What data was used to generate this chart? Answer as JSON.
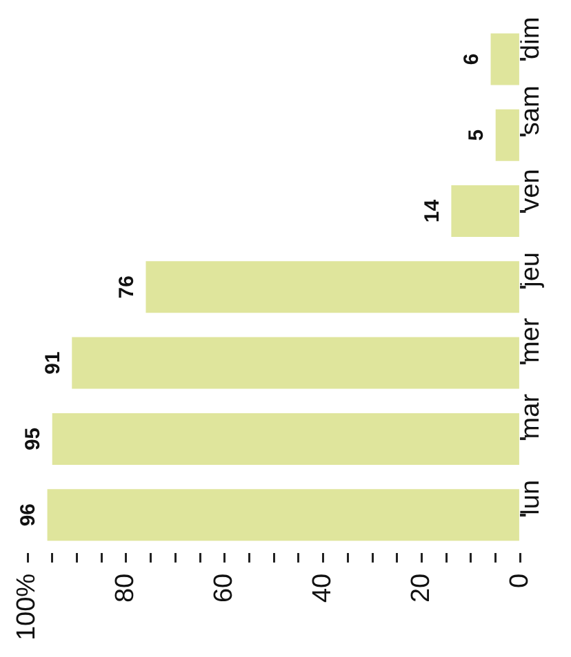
{
  "chart_data": {
    "type": "bar",
    "orientation": "horizontal",
    "categories": [
      "dim",
      "sam",
      "ven",
      "jeu",
      "mer",
      "mar",
      "lun"
    ],
    "values": [
      6,
      5,
      14,
      76,
      91,
      95,
      96
    ],
    "color": "#dfe59c",
    "xlim": [
      100,
      0
    ],
    "xticks": [
      {
        "value": 100,
        "label": "100%"
      },
      {
        "value": 95,
        "label": null
      },
      {
        "value": 90,
        "label": null
      },
      {
        "value": 85,
        "label": null
      },
      80,
      {
        "value": 75,
        "label": null
      },
      {
        "value": 70,
        "label": null
      },
      {
        "value": 65,
        "label": null
      },
      60,
      {
        "value": 55,
        "label": null
      },
      {
        "value": 50,
        "label": null
      },
      {
        "value": 45,
        "label": null
      },
      40,
      {
        "value": 35,
        "label": null
      },
      {
        "value": 30,
        "label": null
      },
      {
        "value": 25,
        "label": null
      },
      20,
      {
        "value": 15,
        "label": null
      },
      {
        "value": 10,
        "label": null
      },
      {
        "value": 5,
        "label": null
      },
      0
    ],
    "data_labels": true,
    "grid": false,
    "legend": false
  }
}
